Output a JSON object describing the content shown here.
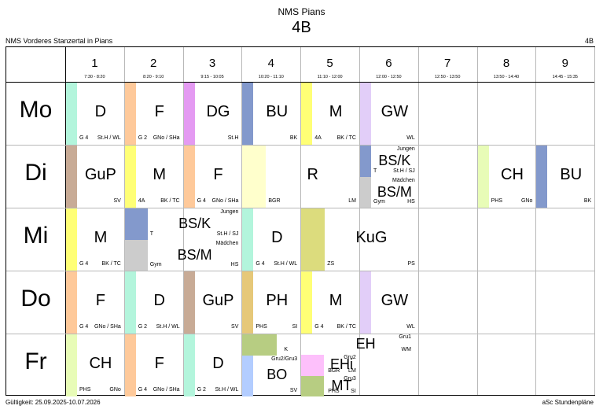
{
  "header": {
    "school": "NMS Pians",
    "class": "4B",
    "left": "NMS Vorderes Stanzertal in Pians",
    "right": "4B"
  },
  "footer": {
    "left": "Gültigkeit: 25.09.2025-10.07.2026",
    "right": "aSc Stundenpläne"
  },
  "periods": [
    {
      "num": "1",
      "time": "7:30 - 8:20"
    },
    {
      "num": "2",
      "time": "8:20 - 9:10"
    },
    {
      "num": "3",
      "time": "9:15 - 10:05"
    },
    {
      "num": "4",
      "time": "10:20 - 11:10"
    },
    {
      "num": "5",
      "time": "11:10 - 12:00"
    },
    {
      "num": "6",
      "time": "12:00 - 12:50"
    },
    {
      "num": "7",
      "time": "12:50 - 13:50"
    },
    {
      "num": "8",
      "time": "13:50 - 14:40"
    },
    {
      "num": "9",
      "time": "14:45 - 15:35"
    }
  ],
  "days": [
    "Mo",
    "Di",
    "Mi",
    "Do",
    "Fr"
  ],
  "colors": {
    "mint": "#b3f5dc",
    "orange": "#fec99a",
    "violet": "#e49af2",
    "blue": "#8399cc",
    "yellow": "#ffff76",
    "lavender": "#e2cef8",
    "brown": "#c8ab96",
    "gray": "#cccccc",
    "lime": "#e8fcb7",
    "cream": "#ffffcc",
    "olive": "#dcdc7d",
    "gold": "#e6c879",
    "green": "#b7cd82",
    "lightblue": "#b3cdff",
    "pink": "#fdc0fb",
    "white": "#ffffff"
  },
  "lessons": [
    {
      "d": 0,
      "p": 0,
      "span": 1,
      "color": "mint",
      "subj": "D",
      "bl": "G 4",
      "br": "St.H / WL"
    },
    {
      "d": 0,
      "p": 1,
      "span": 1,
      "color": "orange",
      "subj": "F",
      "bl": "G 2",
      "br": "GNo / SHa"
    },
    {
      "d": 0,
      "p": 2,
      "span": 1,
      "color": "violet",
      "subj": "DG",
      "bl": "",
      "br": "St.H"
    },
    {
      "d": 0,
      "p": 3,
      "span": 1,
      "color": "blue",
      "subj": "BU",
      "bl": "",
      "br": "BK"
    },
    {
      "d": 0,
      "p": 4,
      "span": 1,
      "color": "yellow",
      "subj": "M",
      "bl": "4A",
      "br": "BK / TC"
    },
    {
      "d": 0,
      "p": 5,
      "span": 1,
      "color": "lavender",
      "subj": "GW",
      "bl": "",
      "br": "WL"
    },
    {
      "d": 1,
      "p": 0,
      "span": 1,
      "color": "brown",
      "subj": "GuP",
      "bl": "",
      "br": "SV"
    },
    {
      "d": 1,
      "p": 1,
      "span": 1,
      "color": "yellow",
      "subj": "M",
      "bl": "4A",
      "br": "BK / TC"
    },
    {
      "d": 1,
      "p": 2,
      "span": 1,
      "color": "orange",
      "subj": "F",
      "bl": "G 4",
      "br": "GNo / SHa"
    },
    {
      "d": 1,
      "p": 3,
      "span": 2,
      "color": "cream",
      "subj": "R",
      "bl": "BGR",
      "br": "LM",
      "barw": 30
    },
    {
      "d": 1,
      "p": 7,
      "span": 1,
      "color": "lime",
      "subj": "CH",
      "bl": "PHS",
      "br": "GNo"
    },
    {
      "d": 1,
      "p": 8,
      "span": 1,
      "color": "blue",
      "subj": "BU",
      "bl": "",
      "br": "BK"
    },
    {
      "d": 2,
      "p": 0,
      "span": 1,
      "color": "yellow",
      "subj": "M",
      "bl": "G 4",
      "br": "BK / TC"
    },
    {
      "d": 2,
      "p": 3,
      "span": 1,
      "color": "mint",
      "subj": "D",
      "bl": "G 4",
      "br": "St.H / WL"
    },
    {
      "d": 2,
      "p": 4,
      "span": 2,
      "color": "olive",
      "subj": "KuG",
      "bl": "ZS",
      "br": "PS",
      "barw": 30
    },
    {
      "d": 3,
      "p": 0,
      "span": 1,
      "color": "orange",
      "subj": "F",
      "bl": "G 4",
      "br": "GNo / SHa"
    },
    {
      "d": 3,
      "p": 1,
      "span": 1,
      "color": "mint",
      "subj": "D",
      "bl": "G 2",
      "br": "St.H / WL"
    },
    {
      "d": 3,
      "p": 2,
      "span": 1,
      "color": "brown",
      "subj": "GuP",
      "bl": "",
      "br": "SV"
    },
    {
      "d": 3,
      "p": 3,
      "span": 1,
      "color": "gold",
      "subj": "PH",
      "bl": "PHS",
      "br": "SI"
    },
    {
      "d": 3,
      "p": 4,
      "span": 1,
      "color": "yellow",
      "subj": "M",
      "bl": "G 4",
      "br": "BK / TC"
    },
    {
      "d": 3,
      "p": 5,
      "span": 1,
      "color": "lavender",
      "subj": "GW",
      "bl": "",
      "br": "WL"
    },
    {
      "d": 4,
      "p": 0,
      "span": 1,
      "color": "lime",
      "subj": "CH",
      "bl": "PHS",
      "br": "GNo"
    },
    {
      "d": 4,
      "p": 1,
      "span": 1,
      "color": "orange",
      "subj": "F",
      "bl": "G 4",
      "br": "GNo / SHa"
    },
    {
      "d": 4,
      "p": 2,
      "span": 1,
      "color": "mint",
      "subj": "D",
      "bl": "G 2",
      "br": "St.H / WL"
    }
  ],
  "splits": [
    {
      "d": 1,
      "p": 5,
      "span": 1,
      "parts": [
        {
          "color": "blue",
          "subj": "BS/K",
          "tr": "Jungen",
          "bl": "T",
          "br": "St.H / SJ"
        },
        {
          "color": "gray",
          "subj": "BS/M",
          "tr": "Mädchen",
          "bl": "Gym",
          "br": "HS"
        }
      ]
    },
    {
      "d": 2,
      "p": 1,
      "span": 2,
      "parts": [
        {
          "color": "blue",
          "subj": "BS/K",
          "tr": "Jungen",
          "bl": "T",
          "br": "St.H / SJ"
        },
        {
          "color": "gray",
          "subj": "BS/M",
          "tr": "Mädchen",
          "bl": "Gym",
          "br": "HS"
        }
      ]
    }
  ],
  "friday_block": {
    "k": {
      "color": "green",
      "label": "K"
    },
    "bo": {
      "color": "lightblue",
      "subj": "BO",
      "tr": "Gru2/Gru3",
      "br": "SV"
    },
    "eh": {
      "color": "white",
      "subj": "EH",
      "tr": "Gru1",
      "br": "WM"
    },
    "ehi": {
      "color": "pink",
      "subj": "EHi",
      "tr": "Gru2",
      "bl": "BGR",
      "br": "LM"
    },
    "mt": {
      "color": "green",
      "subj": "MT",
      "tr": "Gru3",
      "bl": "PHS",
      "br": "SI"
    }
  }
}
